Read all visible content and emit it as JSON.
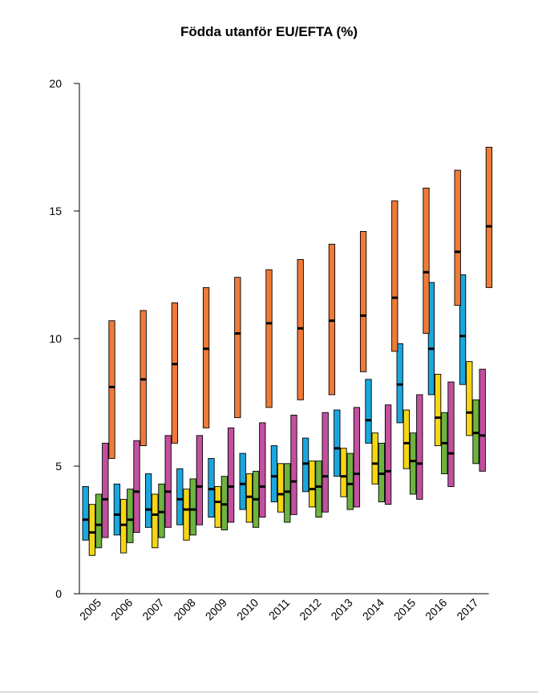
{
  "chart_data": {
    "type": "box",
    "title": "Födda utanför EU/EFTA (%)",
    "xlabel": "",
    "ylabel": "",
    "ylim": [
      0,
      20
    ],
    "yticks": [
      0,
      5,
      10,
      15,
      20
    ],
    "categories": [
      "2005",
      "2006",
      "2007",
      "2008",
      "2009",
      "2010",
      "2011",
      "2012",
      "2013",
      "2014",
      "2015",
      "2016",
      "2017"
    ],
    "grid": false,
    "series": [
      {
        "color": "#1aa7e0",
        "low": [
          2.1,
          2.3,
          2.6,
          2.7,
          3.0,
          3.3,
          3.6,
          4.0,
          4.6,
          5.9,
          6.7,
          7.8,
          8.2
        ],
        "median": [
          2.9,
          3.1,
          3.3,
          3.7,
          4.1,
          4.3,
          4.6,
          5.1,
          5.7,
          6.8,
          8.2,
          9.6,
          10.1
        ],
        "high": [
          4.2,
          4.3,
          4.7,
          4.9,
          5.3,
          5.5,
          5.8,
          6.1,
          7.2,
          8.4,
          9.8,
          12.2,
          12.5
        ]
      },
      {
        "color": "#f5d614",
        "low": [
          1.5,
          1.6,
          1.8,
          2.1,
          2.6,
          2.8,
          3.2,
          3.4,
          3.8,
          4.3,
          4.9,
          5.8,
          6.2
        ],
        "median": [
          2.4,
          2.7,
          3.1,
          3.3,
          3.6,
          3.8,
          3.9,
          4.1,
          4.6,
          5.1,
          5.9,
          6.9,
          7.1
        ],
        "high": [
          3.5,
          3.7,
          3.9,
          4.1,
          4.2,
          4.7,
          5.1,
          5.2,
          5.7,
          6.3,
          7.2,
          8.6,
          9.1
        ]
      },
      {
        "color": "#6eb33f",
        "low": [
          1.8,
          2.0,
          2.2,
          2.3,
          2.5,
          2.6,
          2.8,
          3.0,
          3.3,
          3.6,
          3.9,
          4.7,
          5.1
        ],
        "median": [
          2.7,
          2.9,
          3.2,
          3.3,
          3.5,
          3.7,
          4.0,
          4.2,
          4.3,
          4.7,
          5.2,
          5.9,
          6.3
        ],
        "high": [
          3.9,
          4.1,
          4.3,
          4.5,
          4.6,
          4.8,
          5.1,
          5.2,
          5.5,
          5.9,
          6.3,
          7.1,
          7.6
        ]
      },
      {
        "color": "#c2509e",
        "low": [
          2.2,
          2.4,
          2.6,
          2.7,
          2.8,
          3.0,
          3.1,
          3.2,
          3.4,
          3.5,
          3.7,
          4.2,
          4.8
        ],
        "median": [
          3.7,
          4.0,
          4.0,
          4.2,
          4.2,
          4.2,
          4.4,
          4.6,
          4.7,
          4.8,
          5.1,
          5.5,
          6.2
        ],
        "high": [
          5.9,
          6.0,
          6.2,
          6.2,
          6.5,
          6.7,
          7.0,
          7.1,
          7.3,
          7.4,
          7.8,
          8.3,
          8.8
        ]
      },
      {
        "color": "#ef7a38",
        "low": [
          5.3,
          5.8,
          5.9,
          6.5,
          6.9,
          7.3,
          7.6,
          7.8,
          8.7,
          9.5,
          10.2,
          11.3,
          12.0
        ],
        "median": [
          8.1,
          8.4,
          9.0,
          9.6,
          10.2,
          10.6,
          10.4,
          10.7,
          10.9,
          11.6,
          12.6,
          13.4,
          14.4
        ],
        "high": [
          10.7,
          11.1,
          11.4,
          12.0,
          12.4,
          12.7,
          13.1,
          13.7,
          14.2,
          15.4,
          15.9,
          16.6,
          17.5
        ]
      }
    ]
  }
}
